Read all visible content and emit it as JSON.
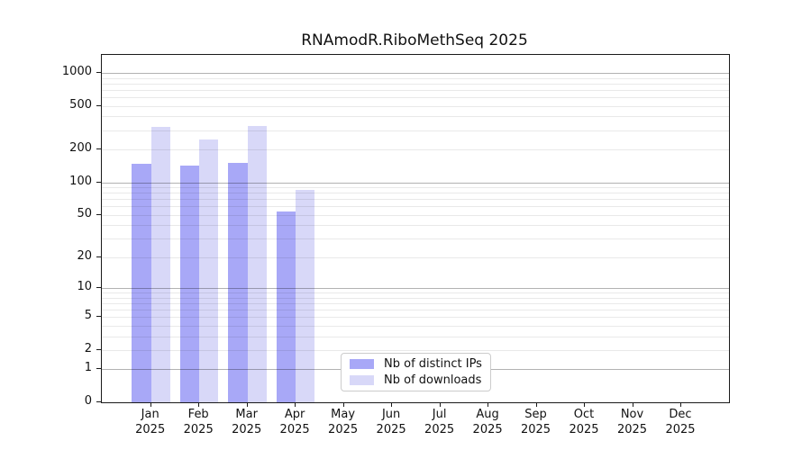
{
  "title": "RNAmodR.RiboMethSeq 2025",
  "chart_data": {
    "type": "bar",
    "title": "RNAmodR.RiboMethSeq 2025",
    "categories": [
      "Jan 2025",
      "Feb 2025",
      "Mar 2025",
      "Apr 2025",
      "May 2025",
      "Jun 2025",
      "Jul 2025",
      "Aug 2025",
      "Sep 2025",
      "Oct 2025",
      "Nov 2025",
      "Dec 2025"
    ],
    "series": [
      {
        "name": "Nb of distinct IPs",
        "color": "#a8a8f7",
        "values": [
          147,
          143,
          152,
          54,
          null,
          null,
          null,
          null,
          null,
          null,
          null,
          null
        ]
      },
      {
        "name": "Nb of downloads",
        "color": "#d8d8f8",
        "values": [
          320,
          247,
          330,
          85,
          null,
          null,
          null,
          null,
          null,
          null,
          null,
          null
        ]
      }
    ],
    "yscale": "log10(value+1)",
    "ylim": [
      0,
      1000
    ],
    "yticks": [
      0,
      1,
      2,
      5,
      10,
      20,
      50,
      100,
      200,
      500,
      1000
    ],
    "major_grid_values": [
      1,
      10,
      100,
      1000
    ],
    "grid": "horizontal, log minors",
    "legend_position": "inside-bottom-center",
    "colors": {
      "major_grid": "#b3b3b3",
      "minor_grid": "#e8e8e8",
      "axis": "#1a1a1a",
      "background": "#ffffff"
    }
  }
}
